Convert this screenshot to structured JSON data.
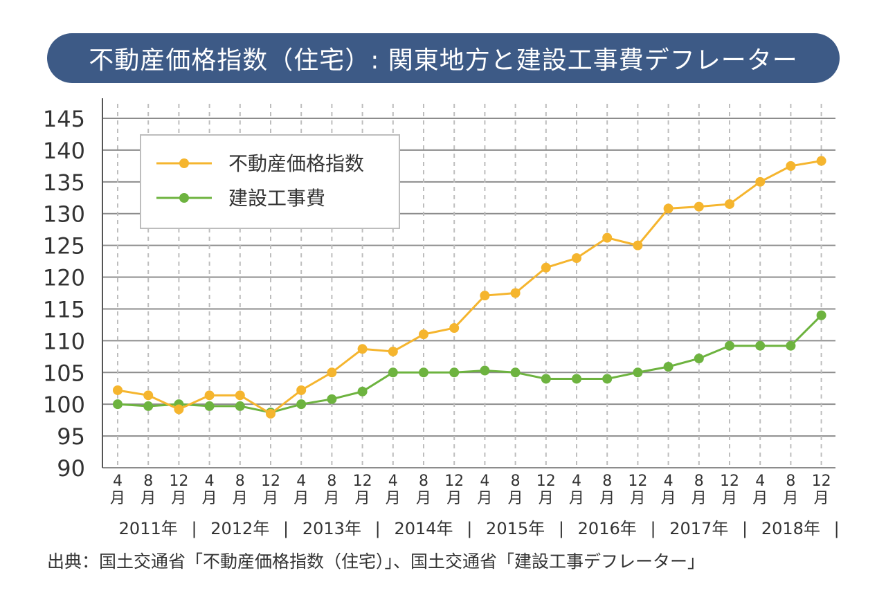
{
  "title": "不動産価格指数（住宅）: 関東地方と建設工事費デフレーター",
  "source": "出典：国土交通省「不動産価格指数（住宅）」、国土交通省「建設工事デフレーター」",
  "colors": {
    "banner": "#3d5a86",
    "real_estate": "#f5b52e",
    "construction": "#6db33f",
    "grid": "#8c8c8c"
  },
  "chart_data": {
    "type": "line",
    "title": "不動産価格指数（住宅）: 関東地方と建設工事費デフレーター",
    "ylim": [
      90,
      145
    ],
    "yticks": [
      "90",
      "95",
      "100",
      "105",
      "110",
      "115",
      "120",
      "125",
      "130",
      "135",
      "140",
      "145"
    ],
    "grid": true,
    "legend_position": "top-left",
    "x_month_labels": [
      "4",
      "8",
      "12",
      "4",
      "8",
      "12",
      "4",
      "8",
      "12",
      "4",
      "8",
      "12",
      "4",
      "8",
      "12",
      "4",
      "8",
      "12",
      "4",
      "8",
      "12",
      "4",
      "8",
      "12"
    ],
    "month_suffix": "月",
    "year_labels": [
      "2011年",
      "2012年",
      "2013年",
      "2014年",
      "2015年",
      "2016年",
      "2017年",
      "2018年"
    ],
    "year_separator": "|",
    "series": [
      {
        "name": "不動産価格指数",
        "values": [
          102.2,
          101.4,
          99.2,
          101.4,
          101.4,
          98.5,
          102.2,
          105.0,
          108.7,
          108.3,
          111.0,
          112.0,
          117.1,
          117.5,
          121.5,
          123.0,
          126.2,
          125.0,
          130.8,
          131.1,
          131.5,
          135.0,
          137.5,
          138.3
        ]
      },
      {
        "name": "建設工事費",
        "values": [
          100.0,
          99.7,
          100.0,
          99.7,
          99.7,
          98.7,
          100.0,
          100.8,
          102.0,
          105.0,
          105.0,
          105.0,
          105.3,
          105.0,
          104.0,
          104.0,
          104.0,
          105.0,
          105.9,
          107.2,
          109.2,
          109.2,
          109.2,
          114.0
        ]
      }
    ]
  }
}
